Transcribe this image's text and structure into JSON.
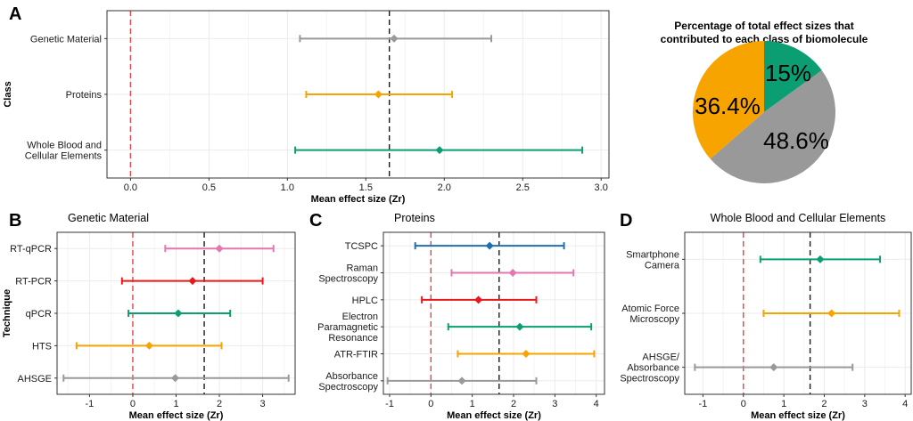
{
  "colors": {
    "grey": "#999999",
    "orange": "#F7A400",
    "green": "#0B9E73",
    "pink": "#E377B0",
    "red": "#E41A1C",
    "blue": "#1F6FB2",
    "zero_line": "#E8424B",
    "mean_line": "#1a1a1a",
    "grid": "#ebebeb",
    "frame": "#333333"
  },
  "chart_data": [
    {
      "id": "A",
      "panel_label": "A",
      "type": "forest",
      "title": "",
      "xlabel": "Mean effect size (Zr)",
      "ylabel": "Class",
      "xlim": [
        -0.15,
        3.05
      ],
      "xticks": [
        0.0,
        0.5,
        1.0,
        1.5,
        2.0,
        2.5,
        3.0
      ],
      "xtick_labels": [
        "0.0",
        "0.5",
        "1.0",
        "1.5",
        "2.0",
        "2.5",
        "3.0"
      ],
      "zero_line": 0,
      "overall_mean": 1.65,
      "rows": [
        {
          "label": [
            "Genetic Material"
          ],
          "mean": 1.68,
          "lower": 1.08,
          "upper": 2.3,
          "color": "#999999"
        },
        {
          "label": [
            "Proteins"
          ],
          "mean": 1.58,
          "lower": 1.12,
          "upper": 2.05,
          "color": "#F7A400"
        },
        {
          "label": [
            "Whole Blood and",
            "Cellular Elements"
          ],
          "mean": 1.97,
          "lower": 1.05,
          "upper": 2.88,
          "color": "#0B9E73"
        }
      ]
    },
    {
      "id": "pie",
      "type": "pie",
      "title": [
        "Percentage of total effect sizes that",
        "contributed to each class of biomolecule"
      ],
      "slices": [
        {
          "label": "15%",
          "value": 15.0,
          "color": "#0B9E73"
        },
        {
          "label": "48.6%",
          "value": 48.6,
          "color": "#999999"
        },
        {
          "label": "36.4%",
          "value": 36.4,
          "color": "#F7A400"
        }
      ]
    },
    {
      "id": "B",
      "panel_label": "B",
      "type": "forest",
      "title": "Genetic Material",
      "xlabel": "Mean effect size (Zr)",
      "ylabel": "Technique",
      "xlim": [
        -1.75,
        3.75
      ],
      "xticks": [
        -1,
        0,
        1,
        2,
        3
      ],
      "xtick_labels": [
        "-1",
        "0",
        "1",
        "2",
        "3"
      ],
      "zero_line": 0,
      "overall_mean": 1.65,
      "rows": [
        {
          "label": [
            "RT-qPCR"
          ],
          "mean": 2.0,
          "lower": 0.75,
          "upper": 3.25,
          "color": "#E377B0"
        },
        {
          "label": [
            "RT-PCR"
          ],
          "mean": 1.38,
          "lower": -0.25,
          "upper": 3.0,
          "color": "#E41A1C"
        },
        {
          "label": [
            "qPCR"
          ],
          "mean": 1.05,
          "lower": -0.1,
          "upper": 2.25,
          "color": "#0B9E73"
        },
        {
          "label": [
            "HTS"
          ],
          "mean": 0.38,
          "lower": -1.3,
          "upper": 2.05,
          "color": "#F7A400"
        },
        {
          "label": [
            "AHSGE"
          ],
          "mean": 0.98,
          "lower": -1.6,
          "upper": 3.6,
          "color": "#999999"
        }
      ]
    },
    {
      "id": "C",
      "panel_label": "C",
      "type": "forest",
      "title": "Proteins",
      "xlabel": "Mean effect size (Zr)",
      "ylabel": "",
      "xlim": [
        -1.15,
        4.2
      ],
      "xticks": [
        -1,
        0,
        1,
        2,
        3,
        4
      ],
      "xtick_labels": [
        "-1",
        "0",
        "1",
        "2",
        "3",
        "4"
      ],
      "zero_line": 0,
      "overall_mean": 1.65,
      "rows": [
        {
          "label": [
            "TCSPC"
          ],
          "mean": 1.42,
          "lower": -0.38,
          "upper": 3.22,
          "color": "#1F6FB2"
        },
        {
          "label": [
            "Raman",
            "Spectroscopy"
          ],
          "mean": 1.98,
          "lower": 0.5,
          "upper": 3.45,
          "color": "#E377B0"
        },
        {
          "label": [
            "HPLC"
          ],
          "mean": 1.15,
          "lower": -0.22,
          "upper": 2.55,
          "color": "#E41A1C"
        },
        {
          "label": [
            "Electron",
            "Paramagnetic",
            "Resonance"
          ],
          "mean": 2.15,
          "lower": 0.42,
          "upper": 3.88,
          "color": "#0B9E73"
        },
        {
          "label": [
            "ATR-FTIR"
          ],
          "mean": 2.3,
          "lower": 0.65,
          "upper": 3.95,
          "color": "#F7A400"
        },
        {
          "label": [
            "Absorbance",
            "Spectroscopy"
          ],
          "mean": 0.75,
          "lower": -1.05,
          "upper": 2.55,
          "color": "#999999"
        }
      ]
    },
    {
      "id": "D",
      "panel_label": "D",
      "type": "forest",
      "title": "Whole Blood and Cellular Elements",
      "xlabel": "Mean effect size (Zr)",
      "ylabel": "",
      "xlim": [
        -1.45,
        4.15
      ],
      "xticks": [
        -1,
        0,
        1,
        2,
        3,
        4
      ],
      "xtick_labels": [
        "-1",
        "0",
        "1",
        "2",
        "3",
        "4"
      ],
      "zero_line": 0,
      "overall_mean": 1.65,
      "rows": [
        {
          "label": [
            "Smartphone",
            "Camera"
          ],
          "mean": 1.9,
          "lower": 0.42,
          "upper": 3.38,
          "color": "#0B9E73"
        },
        {
          "label": [
            "Atomic Force",
            "Microscopy"
          ],
          "mean": 2.18,
          "lower": 0.5,
          "upper": 3.85,
          "color": "#F7A400"
        },
        {
          "label": [
            "AHSGE/",
            "Absorbance",
            "Spectroscopy"
          ],
          "mean": 0.75,
          "lower": -1.2,
          "upper": 2.7,
          "color": "#999999"
        }
      ]
    }
  ]
}
